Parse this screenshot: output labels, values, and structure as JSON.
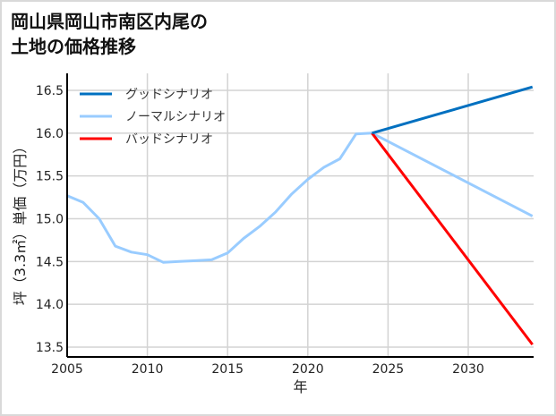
{
  "title_line1": "岡山県岡山市南区内尾の",
  "title_line2": "土地の価格推移",
  "chart_data": {
    "type": "line",
    "title": "岡山県岡山市南区内尾の土地の価格推移",
    "xlabel": "年",
    "ylabel": "坪（3.3㎡）単価（万円）",
    "xlim": [
      2005,
      2034
    ],
    "ylim": [
      13.4,
      16.65
    ],
    "xticks": [
      2005,
      2010,
      2015,
      2020,
      2025,
      2030
    ],
    "yticks": [
      13.5,
      14.0,
      14.5,
      15.0,
      15.5,
      16.0,
      16.5
    ],
    "ytick_labels": [
      "13.5",
      "14.0",
      "14.5",
      "15.0",
      "15.5",
      "16.0",
      "16.5"
    ],
    "grid": true,
    "legend_position": "upper left",
    "series": [
      {
        "name": "グッドシナリオ",
        "color": "#0070c0",
        "x": [
          2024,
          2034
        ],
        "values": [
          16.0,
          16.54
        ]
      },
      {
        "name": "ノーマルシナリオ",
        "color": "#99ccff",
        "x": [
          2005,
          2006,
          2007,
          2008,
          2009,
          2010,
          2011,
          2012,
          2013,
          2014,
          2015,
          2016,
          2017,
          2018,
          2019,
          2020,
          2021,
          2022,
          2023,
          2024,
          2034
        ],
        "values": [
          15.27,
          15.19,
          15.0,
          14.68,
          14.61,
          14.58,
          14.49,
          14.5,
          14.51,
          14.52,
          14.6,
          14.77,
          14.91,
          15.08,
          15.29,
          15.46,
          15.6,
          15.7,
          15.99,
          16.0,
          15.03
        ]
      },
      {
        "name": "バッドシナリオ",
        "color": "#ff0000",
        "x": [
          2024,
          2034
        ],
        "values": [
          16.0,
          13.53
        ]
      }
    ]
  }
}
